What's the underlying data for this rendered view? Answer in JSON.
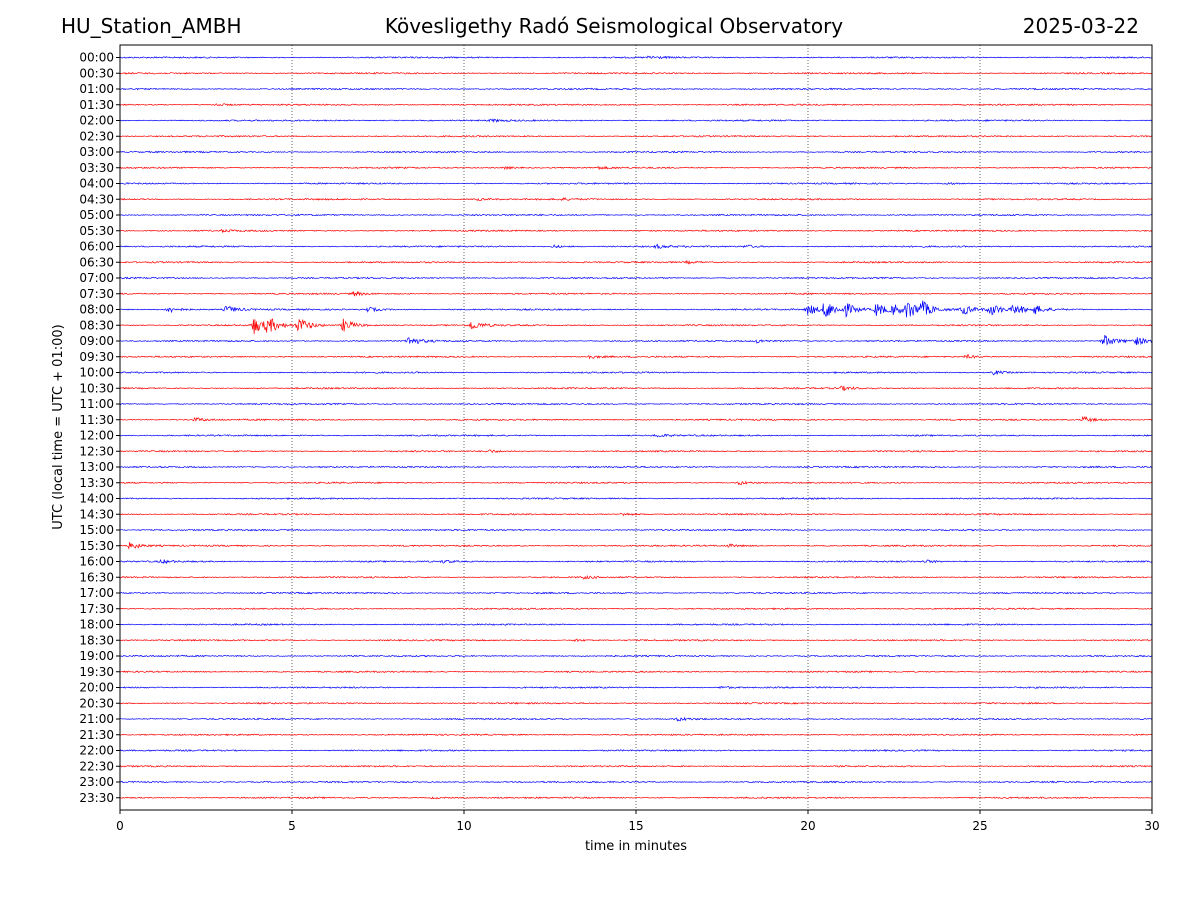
{
  "header": {
    "station": "HU_Station_AMBH",
    "observatory": "Kövesligethy Radó Seismological Observatory",
    "date": "2025-03-22"
  },
  "chart_data": {
    "type": "line",
    "xlabel": "time in minutes",
    "ylabel": "UTC (local time = UTC + 01:00)",
    "xlim": [
      0,
      30
    ],
    "x_ticks": [
      0,
      5,
      10,
      15,
      20,
      25,
      30
    ],
    "vertical_gridlines": [
      5,
      10,
      15,
      20,
      25
    ],
    "grid": "vertical dotted",
    "trace_colors": [
      "#0000ff",
      "#ff0000"
    ],
    "rows": [
      "00:00",
      "00:30",
      "01:00",
      "01:30",
      "02:00",
      "02:30",
      "03:00",
      "03:30",
      "04:00",
      "04:30",
      "05:00",
      "05:30",
      "06:00",
      "06:30",
      "07:00",
      "07:30",
      "08:00",
      "08:30",
      "09:00",
      "09:30",
      "10:00",
      "10:30",
      "11:00",
      "11:30",
      "12:00",
      "12:30",
      "13:00",
      "13:30",
      "14:00",
      "14:30",
      "15:00",
      "15:30",
      "16:00",
      "16:30",
      "17:00",
      "17:30",
      "18:00",
      "18:30",
      "19:00",
      "19:30",
      "20:00",
      "20:30",
      "21:00",
      "21:30",
      "22:00",
      "22:30",
      "23:00",
      "23:30"
    ],
    "events": [
      {
        "row": "00:00",
        "minute": 15.4,
        "amp": 0.5
      },
      {
        "row": "01:30",
        "minute": 2.8,
        "amp": 0.45
      },
      {
        "row": "02:00",
        "minute": 10.8,
        "amp": 0.35
      },
      {
        "row": "03:30",
        "minute": 11.2,
        "amp": 0.4
      },
      {
        "row": "03:30",
        "minute": 13.9,
        "amp": 0.35
      },
      {
        "row": "04:00",
        "minute": 24.0,
        "amp": 0.35
      },
      {
        "row": "04:30",
        "minute": 10.4,
        "amp": 0.35
      },
      {
        "row": "04:30",
        "minute": 12.8,
        "amp": 0.35
      },
      {
        "row": "05:30",
        "minute": 3.0,
        "amp": 0.3
      },
      {
        "row": "06:00",
        "minute": 12.6,
        "amp": 0.45
      },
      {
        "row": "06:00",
        "minute": 15.6,
        "amp": 0.55
      },
      {
        "row": "06:00",
        "minute": 18.2,
        "amp": 0.45
      },
      {
        "row": "06:30",
        "minute": 16.5,
        "amp": 0.3
      },
      {
        "row": "07:30",
        "minute": 6.8,
        "amp": 0.6
      },
      {
        "row": "08:00",
        "minute": 1.4,
        "amp": 1.1
      },
      {
        "row": "08:00",
        "minute": 3.1,
        "amp": 1.2
      },
      {
        "row": "08:00",
        "minute": 7.2,
        "amp": 0.8
      },
      {
        "row": "08:00",
        "minute": 20.0,
        "amp": 1.8
      },
      {
        "row": "08:00",
        "minute": 20.5,
        "amp": 3.0
      },
      {
        "row": "08:00",
        "minute": 21.1,
        "amp": 1.8
      },
      {
        "row": "08:00",
        "minute": 22.0,
        "amp": 2.2
      },
      {
        "row": "08:00",
        "minute": 22.5,
        "amp": 1.6
      },
      {
        "row": "08:00",
        "minute": 22.9,
        "amp": 3.0
      },
      {
        "row": "08:00",
        "minute": 23.3,
        "amp": 2.2
      },
      {
        "row": "08:00",
        "minute": 24.5,
        "amp": 1.6
      },
      {
        "row": "08:00",
        "minute": 25.3,
        "amp": 1.9
      },
      {
        "row": "08:00",
        "minute": 26.0,
        "amp": 1.6
      },
      {
        "row": "08:00",
        "minute": 26.6,
        "amp": 1.2
      },
      {
        "row": "08:30",
        "minute": 3.9,
        "amp": 2.6
      },
      {
        "row": "08:30",
        "minute": 4.3,
        "amp": 2.2
      },
      {
        "row": "08:30",
        "minute": 5.2,
        "amp": 2.4
      },
      {
        "row": "08:30",
        "minute": 6.5,
        "amp": 2.0
      },
      {
        "row": "08:30",
        "minute": 10.2,
        "amp": 1.4
      },
      {
        "row": "09:00",
        "minute": 8.4,
        "amp": 1.5
      },
      {
        "row": "09:00",
        "minute": 18.5,
        "amp": 0.6
      },
      {
        "row": "09:00",
        "minute": 28.6,
        "amp": 2.0
      },
      {
        "row": "09:00",
        "minute": 29.5,
        "amp": 1.3
      },
      {
        "row": "09:30",
        "minute": 13.6,
        "amp": 0.6
      },
      {
        "row": "09:30",
        "minute": 24.6,
        "amp": 0.6
      },
      {
        "row": "10:00",
        "minute": 25.4,
        "amp": 0.7
      },
      {
        "row": "10:30",
        "minute": 21.0,
        "amp": 0.6
      },
      {
        "row": "11:30",
        "minute": 2.2,
        "amp": 0.6
      },
      {
        "row": "11:30",
        "minute": 28.0,
        "amp": 1.0
      },
      {
        "row": "12:00",
        "minute": 15.6,
        "amp": 0.5
      },
      {
        "row": "12:30",
        "minute": 10.7,
        "amp": 0.5
      },
      {
        "row": "13:30",
        "minute": 18.0,
        "amp": 0.6
      },
      {
        "row": "14:30",
        "minute": 14.6,
        "amp": 0.5
      },
      {
        "row": "15:30",
        "minute": 0.3,
        "amp": 1.1
      },
      {
        "row": "15:30",
        "minute": 17.7,
        "amp": 0.45
      },
      {
        "row": "16:00",
        "minute": 1.2,
        "amp": 0.5
      },
      {
        "row": "16:00",
        "minute": 9.4,
        "amp": 0.45
      },
      {
        "row": "16:00",
        "minute": 23.4,
        "amp": 0.45
      },
      {
        "row": "16:30",
        "minute": 13.5,
        "amp": 0.4
      },
      {
        "row": "18:30",
        "minute": 13.2,
        "amp": 0.4
      },
      {
        "row": "20:00",
        "minute": 17.5,
        "amp": 0.4
      },
      {
        "row": "21:00",
        "minute": 16.2,
        "amp": 0.6
      },
      {
        "row": "23:30",
        "minute": 9.1,
        "amp": 0.3
      }
    ]
  }
}
